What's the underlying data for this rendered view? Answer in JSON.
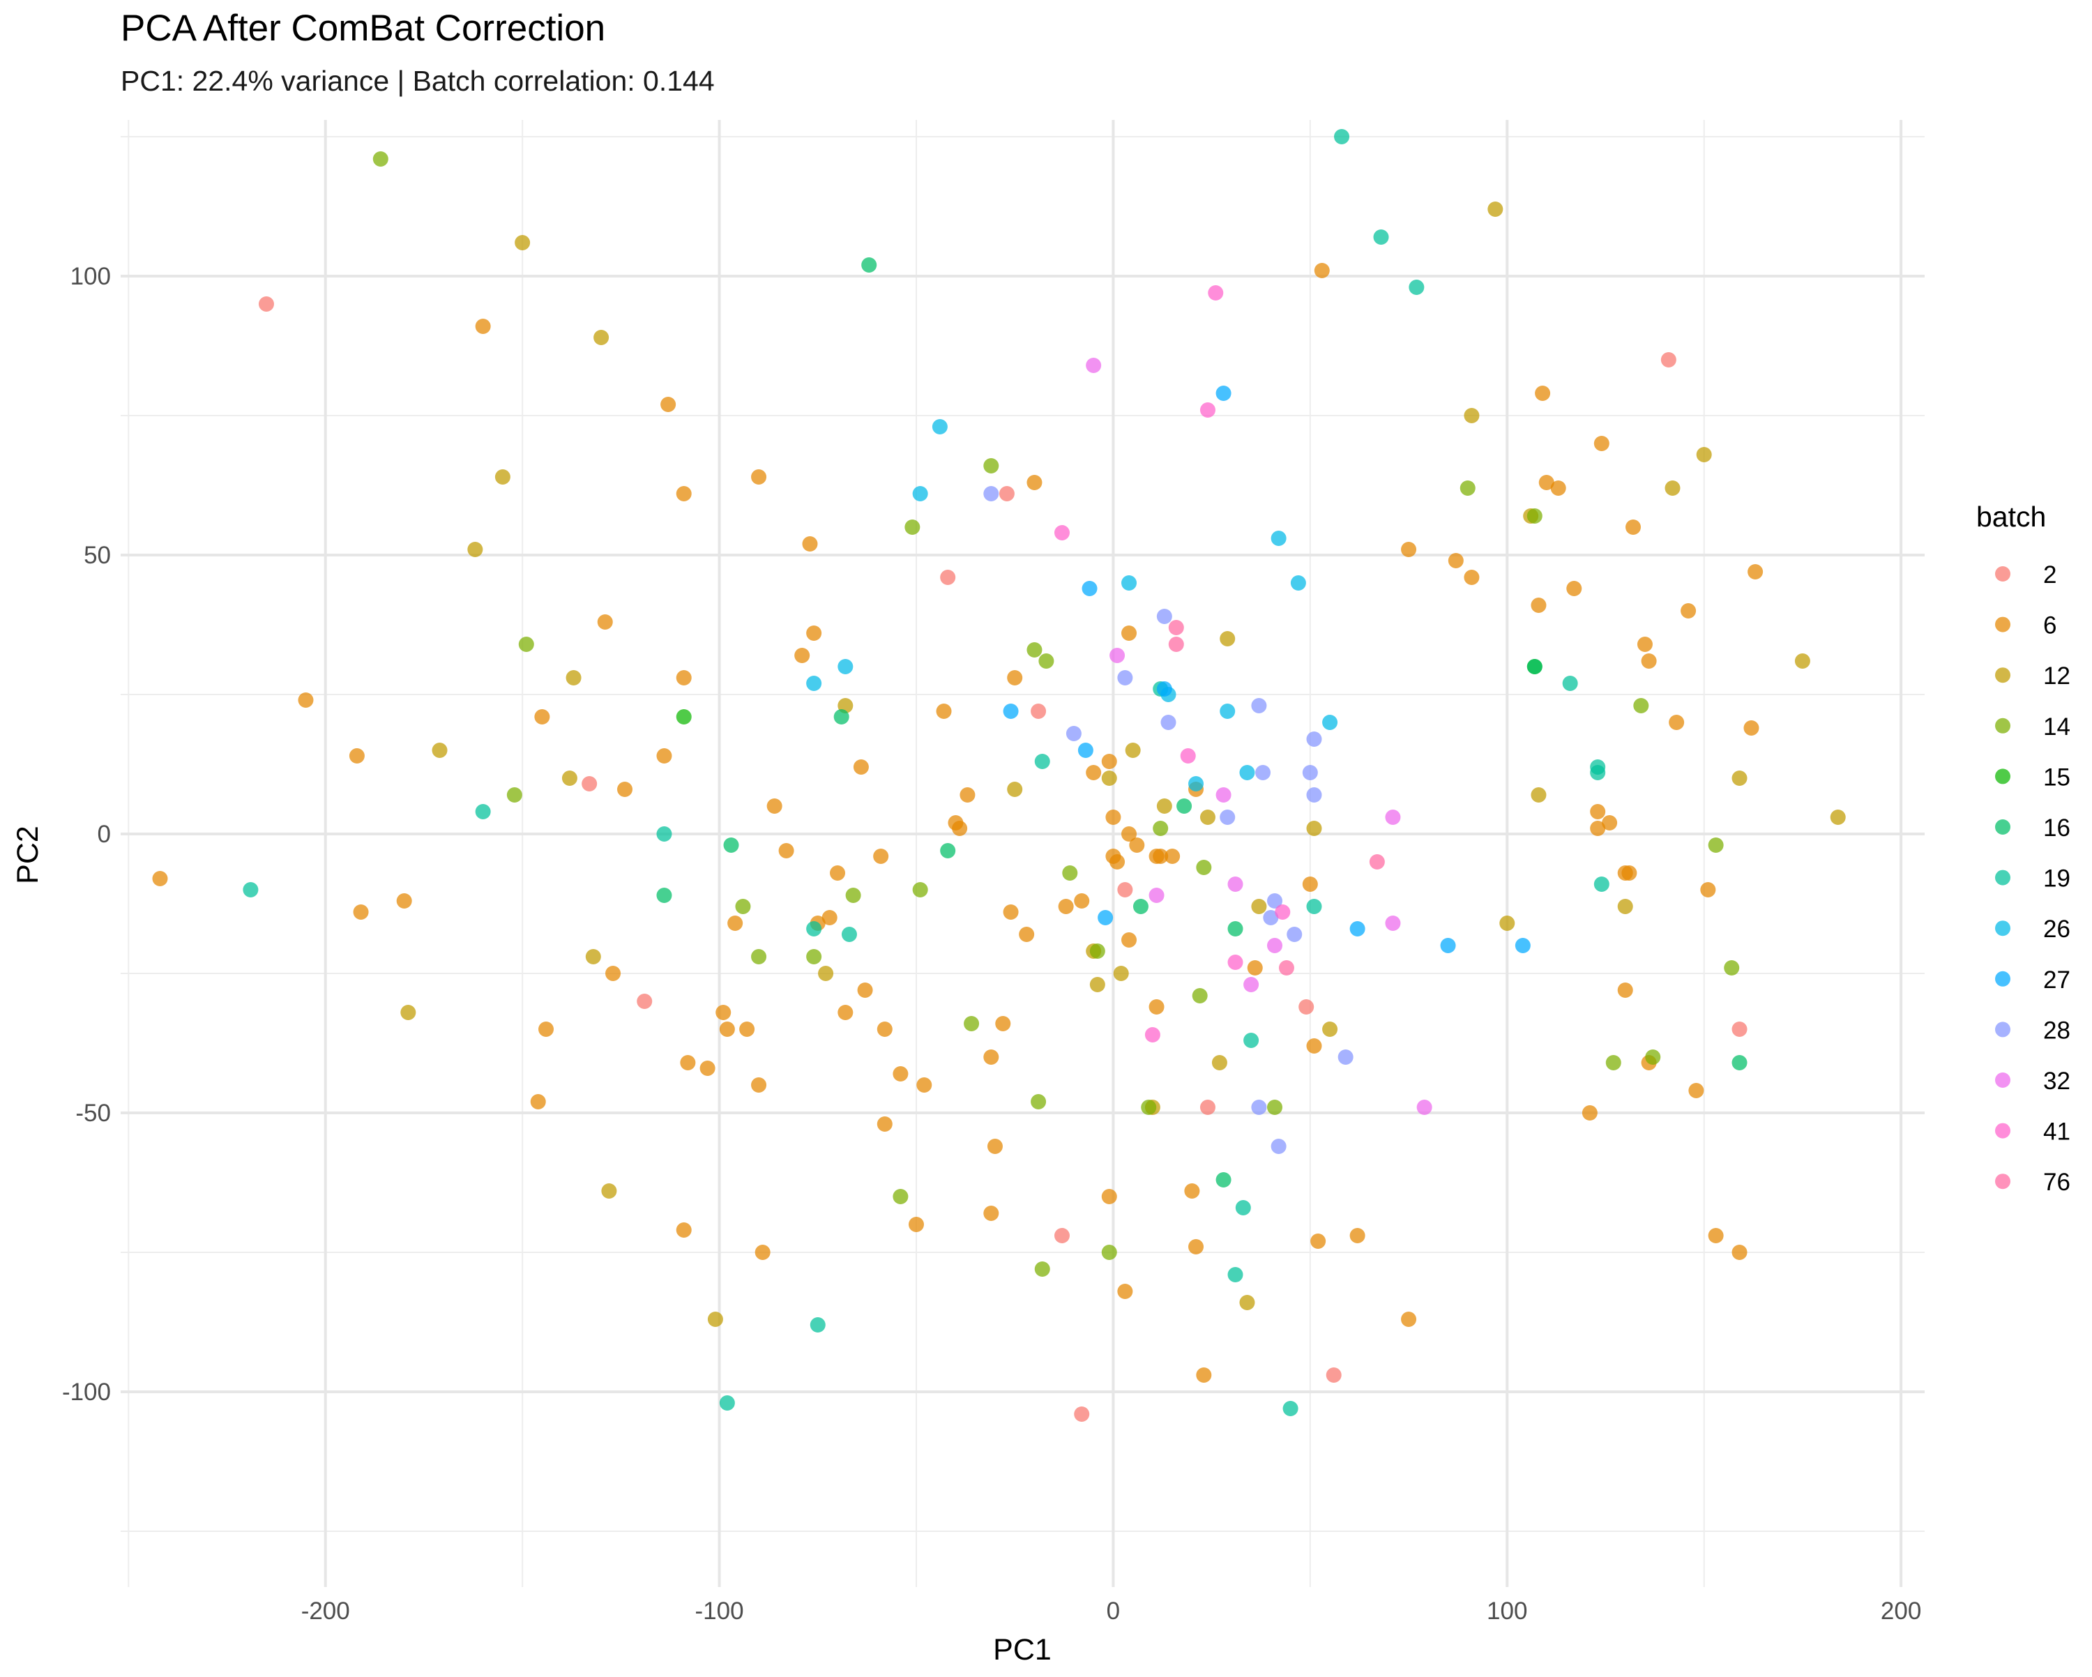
{
  "chart_data": {
    "type": "scatter",
    "title": "PCA After ComBat Correction",
    "subtitle": "PC1: 22.4% variance | Batch correlation: 0.144",
    "xlabel": "PC1",
    "ylabel": "PC2",
    "xlim": [
      -252,
      206
    ],
    "ylim": [
      -135,
      128
    ],
    "x_ticks": [
      -200,
      -100,
      0,
      100,
      200
    ],
    "y_ticks": [
      -100,
      -50,
      0,
      50,
      100
    ],
    "grid": true,
    "legend": {
      "title": "batch",
      "position": "right"
    },
    "series": [
      {
        "name": "2",
        "color": "#F8766D",
        "points": [
          [
            -215,
            95
          ],
          [
            -133,
            9
          ],
          [
            -119,
            -30
          ],
          [
            -27,
            61
          ],
          [
            -42,
            46
          ],
          [
            -19,
            22
          ],
          [
            -13,
            -72
          ],
          [
            -8,
            -104
          ],
          [
            3,
            -10
          ],
          [
            24,
            -49
          ],
          [
            49,
            -31
          ],
          [
            56,
            -97
          ],
          [
            141,
            85
          ],
          [
            159,
            -35
          ]
        ]
      },
      {
        "name": "6",
        "color": "#E58700",
        "points": [
          [
            -242,
            -8
          ],
          [
            -205,
            24
          ],
          [
            -192,
            14
          ],
          [
            -191,
            -14
          ],
          [
            -180,
            -12
          ],
          [
            -160,
            91
          ],
          [
            -146,
            -48
          ],
          [
            -145,
            21
          ],
          [
            -144,
            -35
          ],
          [
            -129,
            38
          ],
          [
            -127,
            -25
          ],
          [
            -124,
            8
          ],
          [
            -114,
            14
          ],
          [
            -113,
            77
          ],
          [
            -109,
            61
          ],
          [
            -109,
            28
          ],
          [
            -108,
            -41
          ],
          [
            -109,
            -71
          ],
          [
            -103,
            -42
          ],
          [
            -99,
            -32
          ],
          [
            -98,
            -35
          ],
          [
            -96,
            -16
          ],
          [
            -93,
            -35
          ],
          [
            -90,
            64
          ],
          [
            -90,
            -45
          ],
          [
            -89,
            -75
          ],
          [
            -86,
            5
          ],
          [
            -83,
            -3
          ],
          [
            -79,
            32
          ],
          [
            -77,
            52
          ],
          [
            -76,
            36
          ],
          [
            -75,
            -16
          ],
          [
            -72,
            -15
          ],
          [
            -70,
            -7
          ],
          [
            -68,
            -32
          ],
          [
            -64,
            12
          ],
          [
            -63,
            -28
          ],
          [
            -59,
            -4
          ],
          [
            -58,
            -35
          ],
          [
            -58,
            -52
          ],
          [
            -54,
            -43
          ],
          [
            -48,
            -45
          ],
          [
            -50,
            -70
          ],
          [
            -43,
            22
          ],
          [
            -40,
            2
          ],
          [
            -39,
            1
          ],
          [
            -37,
            7
          ],
          [
            -31,
            -40
          ],
          [
            -31,
            -68
          ],
          [
            -30,
            -56
          ],
          [
            -28,
            -34
          ],
          [
            -26,
            -14
          ],
          [
            -25,
            28
          ],
          [
            -22,
            -18
          ],
          [
            -20,
            63
          ],
          [
            -12,
            -13
          ],
          [
            -8,
            -12
          ],
          [
            -5,
            11
          ],
          [
            -1,
            13
          ],
          [
            0,
            3
          ],
          [
            -1,
            -65
          ],
          [
            0,
            -4
          ],
          [
            1,
            -5
          ],
          [
            3,
            -82
          ],
          [
            4,
            -19
          ],
          [
            4,
            36
          ],
          [
            4,
            0
          ],
          [
            6,
            -2
          ],
          [
            11,
            -4
          ],
          [
            11,
            -31
          ],
          [
            12,
            -4
          ],
          [
            15,
            -4
          ],
          [
            20,
            -64
          ],
          [
            21,
            8
          ],
          [
            21,
            -74
          ],
          [
            23,
            -97
          ],
          [
            36,
            -24
          ],
          [
            50,
            -9
          ],
          [
            51,
            -38
          ],
          [
            52,
            -73
          ],
          [
            53,
            101
          ],
          [
            62,
            -72
          ],
          [
            75,
            51
          ],
          [
            75,
            -87
          ],
          [
            87,
            49
          ],
          [
            91,
            46
          ],
          [
            108,
            41
          ],
          [
            109,
            79
          ],
          [
            110,
            63
          ],
          [
            113,
            62
          ],
          [
            117,
            44
          ],
          [
            121,
            -50
          ],
          [
            123,
            4
          ],
          [
            123,
            1
          ],
          [
            124,
            70
          ],
          [
            126,
            2
          ],
          [
            130,
            -7
          ],
          [
            131,
            -7
          ],
          [
            130,
            -28
          ],
          [
            132,
            55
          ],
          [
            135,
            34
          ],
          [
            136,
            31
          ],
          [
            136,
            -41
          ],
          [
            143,
            20
          ],
          [
            146,
            40
          ],
          [
            148,
            -46
          ],
          [
            151,
            -10
          ],
          [
            153,
            -72
          ],
          [
            159,
            -75
          ],
          [
            162,
            19
          ],
          [
            163,
            47
          ]
        ]
      },
      {
        "name": "12",
        "color": "#C09B00",
        "points": [
          [
            -171,
            15
          ],
          [
            -162,
            51
          ],
          [
            -155,
            64
          ],
          [
            -150,
            106
          ],
          [
            -138,
            10
          ],
          [
            -137,
            28
          ],
          [
            -132,
            -22
          ],
          [
            -130,
            89
          ],
          [
            -128,
            -64
          ],
          [
            -179,
            -32
          ],
          [
            -101,
            -87
          ],
          [
            -73,
            -25
          ],
          [
            -68,
            23
          ],
          [
            -25,
            8
          ],
          [
            -5,
            -21
          ],
          [
            -4,
            -27
          ],
          [
            -1,
            10
          ],
          [
            2,
            -25
          ],
          [
            5,
            15
          ],
          [
            10,
            -49
          ],
          [
            13,
            5
          ],
          [
            24,
            3
          ],
          [
            27,
            -41
          ],
          [
            29,
            35
          ],
          [
            34,
            -84
          ],
          [
            37,
            -13
          ],
          [
            51,
            1
          ],
          [
            55,
            -35
          ],
          [
            97,
            112
          ],
          [
            100,
            -16
          ],
          [
            108,
            7
          ],
          [
            130,
            -13
          ],
          [
            150,
            68
          ],
          [
            159,
            10
          ],
          [
            175,
            31
          ],
          [
            184,
            3
          ],
          [
            91,
            75
          ],
          [
            142,
            62
          ],
          [
            106,
            57
          ]
        ]
      },
      {
        "name": "14",
        "color": "#7CAE00",
        "points": [
          [
            -186,
            121
          ],
          [
            -152,
            7
          ],
          [
            -149,
            34
          ],
          [
            -94,
            -13
          ],
          [
            -90,
            -22
          ],
          [
            -76,
            -22
          ],
          [
            -66,
            -11
          ],
          [
            -54,
            -65
          ],
          [
            -51,
            55
          ],
          [
            -49,
            -10
          ],
          [
            -36,
            -34
          ],
          [
            -31,
            66
          ],
          [
            -19,
            -48
          ],
          [
            -18,
            -78
          ],
          [
            -17,
            31
          ],
          [
            -20,
            33
          ],
          [
            -11,
            -7
          ],
          [
            -4,
            -21
          ],
          [
            -1,
            -75
          ],
          [
            9,
            -49
          ],
          [
            12,
            1
          ],
          [
            22,
            -29
          ],
          [
            23,
            -6
          ],
          [
            41,
            -49
          ],
          [
            90,
            62
          ],
          [
            107,
            57
          ],
          [
            127,
            -41
          ],
          [
            134,
            23
          ],
          [
            137,
            -40
          ],
          [
            153,
            -2
          ],
          [
            157,
            -24
          ]
        ]
      },
      {
        "name": "15",
        "color": "#0CB702",
        "points": [
          [
            -109,
            21
          ],
          [
            107,
            30
          ]
        ]
      },
      {
        "name": "16",
        "color": "#00BE67",
        "points": [
          [
            -114,
            -11
          ],
          [
            -97,
            -2
          ],
          [
            -69,
            21
          ],
          [
            -62,
            102
          ],
          [
            -42,
            -3
          ],
          [
            7,
            -13
          ],
          [
            18,
            5
          ],
          [
            31,
            -17
          ],
          [
            28,
            -62
          ],
          [
            107,
            30
          ],
          [
            159,
            -41
          ]
        ]
      },
      {
        "name": "19",
        "color": "#00C19A",
        "points": [
          [
            -219,
            -10
          ],
          [
            -160,
            4
          ],
          [
            -114,
            0
          ],
          [
            -98,
            -102
          ],
          [
            -76,
            -17
          ],
          [
            -75,
            -88
          ],
          [
            -67,
            -18
          ],
          [
            -18,
            13
          ],
          [
            12,
            26
          ],
          [
            31,
            -79
          ],
          [
            33,
            -67
          ],
          [
            35,
            -37
          ],
          [
            45,
            -103
          ],
          [
            51,
            -13
          ],
          [
            58,
            125
          ],
          [
            68,
            107
          ],
          [
            77,
            98
          ],
          [
            116,
            27
          ],
          [
            123,
            11
          ],
          [
            123,
            12
          ],
          [
            124,
            -9
          ]
        ]
      },
      {
        "name": "26",
        "color": "#00B8E7",
        "points": [
          [
            -76,
            27
          ],
          [
            -68,
            30
          ],
          [
            -44,
            73
          ],
          [
            -49,
            61
          ],
          [
            4,
            45
          ],
          [
            14,
            25
          ],
          [
            21,
            9
          ],
          [
            29,
            22
          ],
          [
            34,
            11
          ],
          [
            42,
            53
          ],
          [
            47,
            45
          ],
          [
            55,
            20
          ]
        ]
      },
      {
        "name": "27",
        "color": "#00A9FF",
        "points": [
          [
            -26,
            22
          ],
          [
            -7,
            15
          ],
          [
            -2,
            -15
          ],
          [
            -6,
            44
          ],
          [
            13,
            26
          ],
          [
            28,
            79
          ],
          [
            62,
            -17
          ],
          [
            85,
            -20
          ],
          [
            104,
            -20
          ]
        ]
      },
      {
        "name": "28",
        "color": "#8494FF",
        "points": [
          [
            -31,
            61
          ],
          [
            -10,
            18
          ],
          [
            3,
            28
          ],
          [
            13,
            39
          ],
          [
            14,
            20
          ],
          [
            29,
            3
          ],
          [
            37,
            23
          ],
          [
            38,
            11
          ],
          [
            40,
            -15
          ],
          [
            41,
            -12
          ],
          [
            42,
            -56
          ],
          [
            46,
            -18
          ],
          [
            50,
            11
          ],
          [
            51,
            17
          ],
          [
            51,
            7
          ],
          [
            59,
            -40
          ],
          [
            37,
            -49
          ]
        ]
      },
      {
        "name": "32",
        "color": "#ED68ED",
        "points": [
          [
            -5,
            84
          ],
          [
            1,
            32
          ],
          [
            11,
            -11
          ],
          [
            28,
            7
          ],
          [
            31,
            -9
          ],
          [
            35,
            -27
          ],
          [
            41,
            -20
          ],
          [
            71,
            3
          ],
          [
            71,
            -16
          ],
          [
            79,
            -49
          ]
        ]
      },
      {
        "name": "41",
        "color": "#FF61CC",
        "points": [
          [
            -13,
            54
          ],
          [
            26,
            97
          ],
          [
            24,
            76
          ],
          [
            10,
            -36
          ],
          [
            19,
            14
          ],
          [
            31,
            -23
          ],
          [
            43,
            -14
          ]
        ]
      },
      {
        "name": "76",
        "color": "#FF68A1",
        "points": [
          [
            16,
            37
          ],
          [
            16,
            34
          ],
          [
            44,
            -24
          ],
          [
            67,
            -5
          ]
        ]
      }
    ]
  }
}
